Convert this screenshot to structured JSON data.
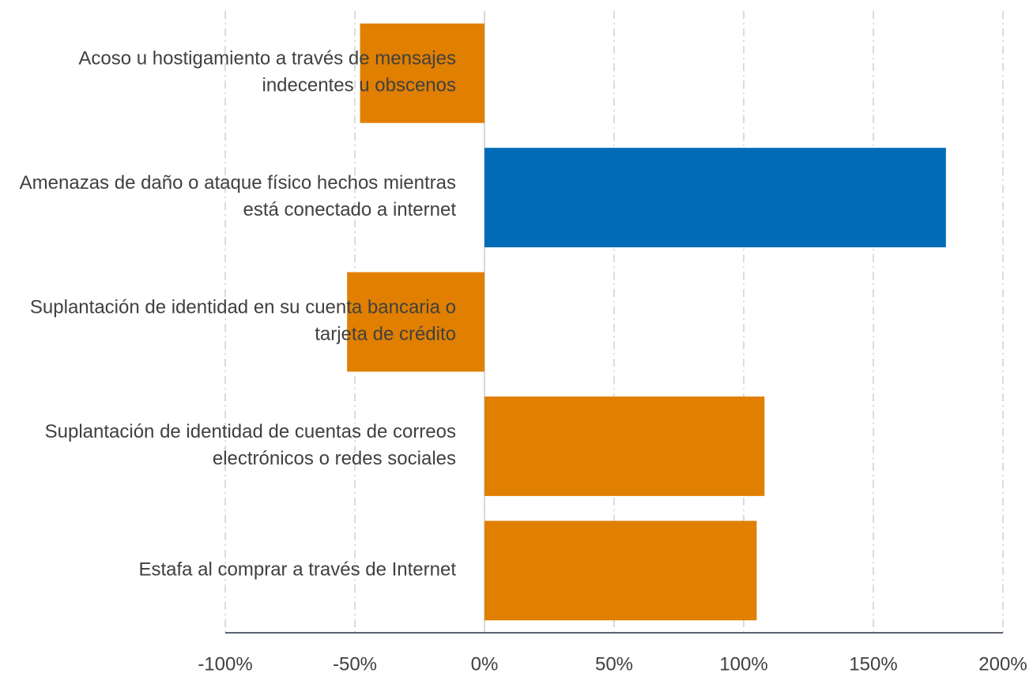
{
  "chart_data": {
    "type": "barh",
    "categories": [
      "Acoso u hostigamiento a través de mensajes indecentes u obscenos",
      "Amenazas de daño o ataque físico hechos mientras está conectado a internet",
      "Suplantación de identidad en su cuenta bancaria o tarjeta de crédito",
      "Suplantación de identidad de cuentas de correos electrónicos o redes sociales",
      "Estafa al comprar a través de Internet"
    ],
    "values": [
      -48,
      178,
      -53,
      108,
      105
    ],
    "colors": [
      "#e07f00",
      "#006bb6",
      "#e07f00",
      "#e07f00",
      "#e07f00"
    ],
    "xlim": [
      -100,
      200
    ],
    "xticks": [
      {
        "value": -100,
        "label": "-100%"
      },
      {
        "value": -50,
        "label": "-50%"
      },
      {
        "value": 0,
        "label": "0%"
      },
      {
        "value": 50,
        "label": "50%"
      },
      {
        "value": 100,
        "label": "100%"
      },
      {
        "value": 150,
        "label": "150%"
      },
      {
        "value": 200,
        "label": "200%"
      }
    ],
    "grid": true
  }
}
